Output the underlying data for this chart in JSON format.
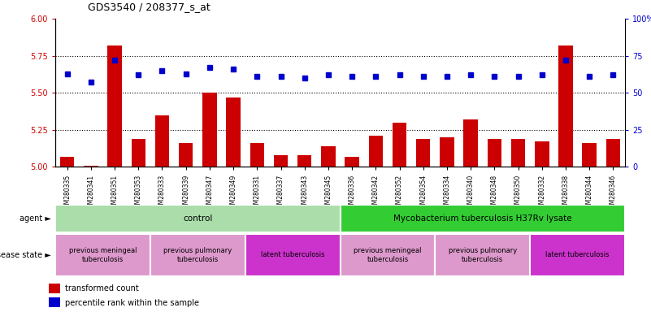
{
  "title": "GDS3540 / 208377_s_at",
  "samples": [
    "GSM280335",
    "GSM280341",
    "GSM280351",
    "GSM280353",
    "GSM280333",
    "GSM280339",
    "GSM280347",
    "GSM280349",
    "GSM280331",
    "GSM280337",
    "GSM280343",
    "GSM280345",
    "GSM280336",
    "GSM280342",
    "GSM280352",
    "GSM280354",
    "GSM280334",
    "GSM280340",
    "GSM280348",
    "GSM280350",
    "GSM280332",
    "GSM280338",
    "GSM280344",
    "GSM280346"
  ],
  "bar_values": [
    5.07,
    5.01,
    5.82,
    5.19,
    5.35,
    5.16,
    5.5,
    5.47,
    5.16,
    5.08,
    5.08,
    5.14,
    5.07,
    5.21,
    5.3,
    5.19,
    5.2,
    5.32,
    5.19,
    5.19,
    5.17,
    5.82,
    5.16,
    5.19
  ],
  "dot_values": [
    63,
    57,
    72,
    62,
    65,
    63,
    67,
    66,
    61,
    61,
    60,
    62,
    61,
    61,
    62,
    61,
    61,
    62,
    61,
    61,
    62,
    72,
    61,
    62
  ],
  "bar_color": "#cc0000",
  "dot_color": "#0000cc",
  "ylim_left": [
    5.0,
    6.0
  ],
  "ylim_right": [
    0,
    100
  ],
  "yticks_left": [
    5.0,
    5.25,
    5.5,
    5.75,
    6.0
  ],
  "yticks_right": [
    0,
    25,
    50,
    75,
    100
  ],
  "yticklabels_right": [
    "0",
    "25",
    "50",
    "75",
    "100%"
  ],
  "agent_labels": [
    {
      "text": "control",
      "start": 0,
      "end": 11,
      "color": "#aaddaa"
    },
    {
      "text": "Mycobacterium tuberculosis H37Rv lysate",
      "start": 12,
      "end": 23,
      "color": "#33cc33"
    }
  ],
  "disease_labels": [
    {
      "text": "previous meningeal\ntuberculosis",
      "start": 0,
      "end": 3,
      "color": "#dd99cc"
    },
    {
      "text": "previous pulmonary\ntuberculosis",
      "start": 4,
      "end": 7,
      "color": "#dd99cc"
    },
    {
      "text": "latent tuberculosis",
      "start": 8,
      "end": 11,
      "color": "#cc33cc"
    },
    {
      "text": "previous meningeal\ntuberculosis",
      "start": 12,
      "end": 15,
      "color": "#dd99cc"
    },
    {
      "text": "previous pulmonary\ntuberculosis",
      "start": 16,
      "end": 19,
      "color": "#dd99cc"
    },
    {
      "text": "latent tuberculosis",
      "start": 20,
      "end": 23,
      "color": "#cc33cc"
    }
  ],
  "legend_bar_label": "transformed count",
  "legend_dot_label": "percentile rank within the sample",
  "xlabel_agent": "agent",
  "xlabel_disease": "disease state"
}
